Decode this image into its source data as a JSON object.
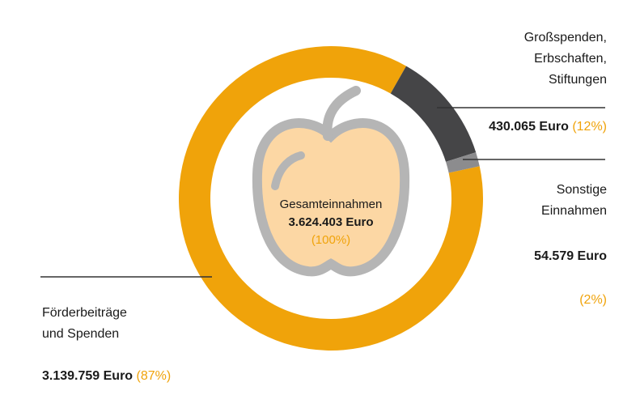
{
  "chart_data": {
    "type": "donut",
    "categories": [
      "Förderbeiträge\nund Spenden",
      "Großspenden,\nErbschaften,\nStiftungen",
      "Sonstige\nEinnahmen"
    ],
    "values": [
      3139759,
      430065,
      54579
    ],
    "value_labels": [
      "3.139.759 Euro",
      "430.065 Euro",
      "54.579 Euro"
    ],
    "share_labels": [
      "(87%)",
      "(12%)",
      "(2%)"
    ],
    "colors": [
      "#f0a30a",
      "#454547",
      "#8c8c8e"
    ],
    "center_title": "Gesamteinnahmen",
    "total": 3624403,
    "total_label": "3.624.403 Euro",
    "total_share_label": "(100%)"
  }
}
